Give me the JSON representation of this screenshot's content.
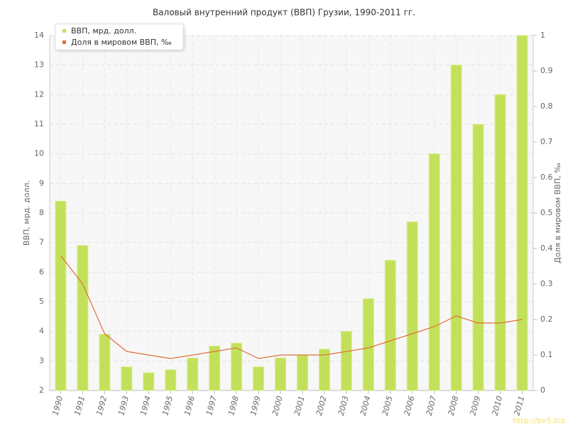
{
  "chart_data": {
    "type": "bar",
    "title": "Валовый внутренний продукт (ВВП) Грузии, 1990-2011 гг.",
    "categories": [
      "1990",
      "1991",
      "1992",
      "1993",
      "1994",
      "1995",
      "1996",
      "1997",
      "1998",
      "1999",
      "2000",
      "2001",
      "2002",
      "2003",
      "2004",
      "2005",
      "2006",
      "2007",
      "2008",
      "2009",
      "2010",
      "2011"
    ],
    "series": [
      {
        "name": "ВВП, мрд. долл.",
        "type": "bar",
        "color": "#c3e05a",
        "values": [
          8.4,
          6.9,
          3.9,
          2.8,
          2.6,
          2.7,
          3.1,
          3.5,
          3.6,
          2.8,
          3.1,
          3.2,
          3.4,
          4.0,
          5.1,
          6.4,
          7.7,
          10.0,
          13.0,
          11.0,
          12.0,
          14.0
        ]
      },
      {
        "name": "Доля в мировом ВВП, ‰",
        "type": "line",
        "axis": "y2",
        "color": "#e0703c",
        "values": [
          0.38,
          0.3,
          0.16,
          0.11,
          0.1,
          0.09,
          0.1,
          0.11,
          0.12,
          0.09,
          0.1,
          0.1,
          0.1,
          0.11,
          0.12,
          0.14,
          0.16,
          0.18,
          0.21,
          0.19,
          0.19,
          0.2
        ]
      }
    ],
    "y_label": "ВВП, мрд. долл.",
    "y2_label": "Доля в мировом ВВП, ‰",
    "ylim": [
      2,
      14
    ],
    "yticks": [
      2,
      3,
      4,
      5,
      6,
      7,
      8,
      9,
      10,
      11,
      12,
      13,
      14
    ],
    "y2lim": [
      0,
      1
    ],
    "y2ticks": [
      0,
      0.1,
      0.2,
      0.3,
      0.4,
      0.5,
      0.6,
      0.7,
      0.8,
      0.9,
      1
    ],
    "grid": true,
    "legend": "top-left",
    "watermark": "http://be5.biz"
  }
}
